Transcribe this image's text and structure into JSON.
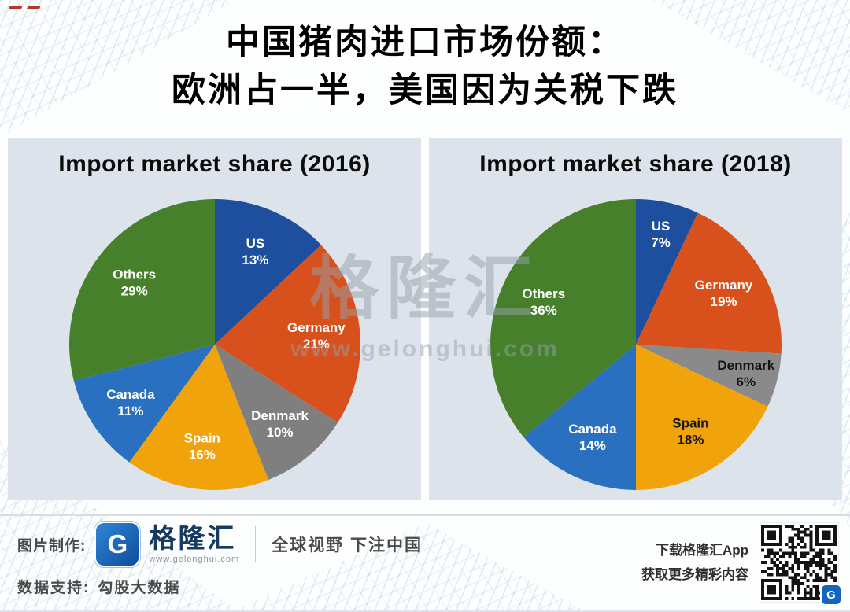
{
  "page": {
    "title_line1": "中国猪肉进口市场份额：",
    "title_line2": "欧洲占一半，美国因为关税下跌"
  },
  "watermark": {
    "brand": "格隆汇",
    "url": "www.gelonghui.com"
  },
  "chart_data": [
    {
      "type": "pie",
      "title": "Import market share (2016)",
      "labels": [
        "US",
        "Germany",
        "Denmark",
        "Spain",
        "Canada",
        "Others"
      ],
      "values": [
        13,
        21,
        10,
        16,
        11,
        29
      ],
      "colors": [
        "#1e4f9f",
        "#d8511d",
        "#7f7f7f",
        "#f0a30a",
        "#2a70c0",
        "#46802a"
      ],
      "label_colors": [
        "#ffffff",
        "#ffffff",
        "#ffffff",
        "#ffffff",
        "#ffffff",
        "#ffffff"
      ],
      "start_angle_deg": 0,
      "direction": "clockwise",
      "legend": "none"
    },
    {
      "type": "pie",
      "title": "Import market share (2018)",
      "labels": [
        "US",
        "Germany",
        "Denmark",
        "Spain",
        "Canada",
        "Others"
      ],
      "values": [
        7,
        19,
        6,
        18,
        14,
        36
      ],
      "colors": [
        "#1e4f9f",
        "#d8511d",
        "#8a8a8a",
        "#f0a30a",
        "#2a70c0",
        "#46802a"
      ],
      "label_colors": [
        "#ffffff",
        "#ffffff",
        "#151515",
        "#151515",
        "#ffffff",
        "#ffffff"
      ],
      "start_angle_deg": 0,
      "direction": "clockwise",
      "legend": "none"
    }
  ],
  "footer": {
    "made_by_label": "图片制作:",
    "logo_letter": "G",
    "logo_brand": "格隆汇",
    "logo_url": "www.gelonghui.com",
    "slogan": "全球视野 下注中国",
    "data_label": "数据支持:",
    "data_value": "勾股大数据",
    "app_cta_line1": "下载格隆汇App",
    "app_cta_line2": "获取更多精彩内容"
  }
}
